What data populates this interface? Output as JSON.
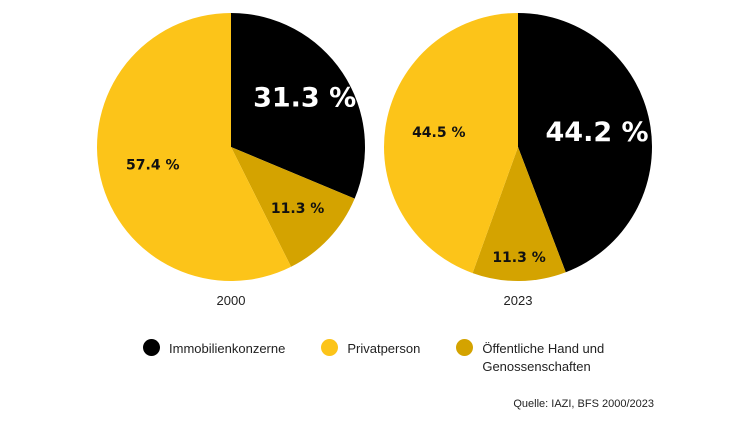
{
  "chart_data": [
    {
      "type": "pie",
      "label": "2000",
      "slices": [
        {
          "name": "Immobilienkonzerne",
          "value": 31.3,
          "label": "31.3 %",
          "color": "#000000"
        },
        {
          "name": "Öffentliche Hand und Genossenschaften",
          "value": 11.3,
          "label": "11.3 %",
          "color": "#d4a300"
        },
        {
          "name": "Privatperson",
          "value": 57.4,
          "label": "57.4 %",
          "color": "#fcc419"
        }
      ]
    },
    {
      "type": "pie",
      "label": "2023",
      "slices": [
        {
          "name": "Immobilienkonzerne",
          "value": 44.2,
          "label": "44.2 %",
          "color": "#000000"
        },
        {
          "name": "Öffentliche Hand und Genossenschaften",
          "value": 11.3,
          "label": "11.3 %",
          "color": "#d4a300"
        },
        {
          "name": "Privatperson",
          "value": 44.5,
          "label": "44.5 %",
          "color": "#fcc419"
        }
      ]
    }
  ],
  "legend": [
    {
      "label": "Immobilienkonzerne",
      "color": "#000000"
    },
    {
      "label": "Privatperson",
      "color": "#fcc419"
    },
    {
      "label": "Öffentliche Hand und Genossenschaften",
      "color": "#d4a300"
    }
  ],
  "source": "Quelle: IAZI, BFS 2000/2023"
}
